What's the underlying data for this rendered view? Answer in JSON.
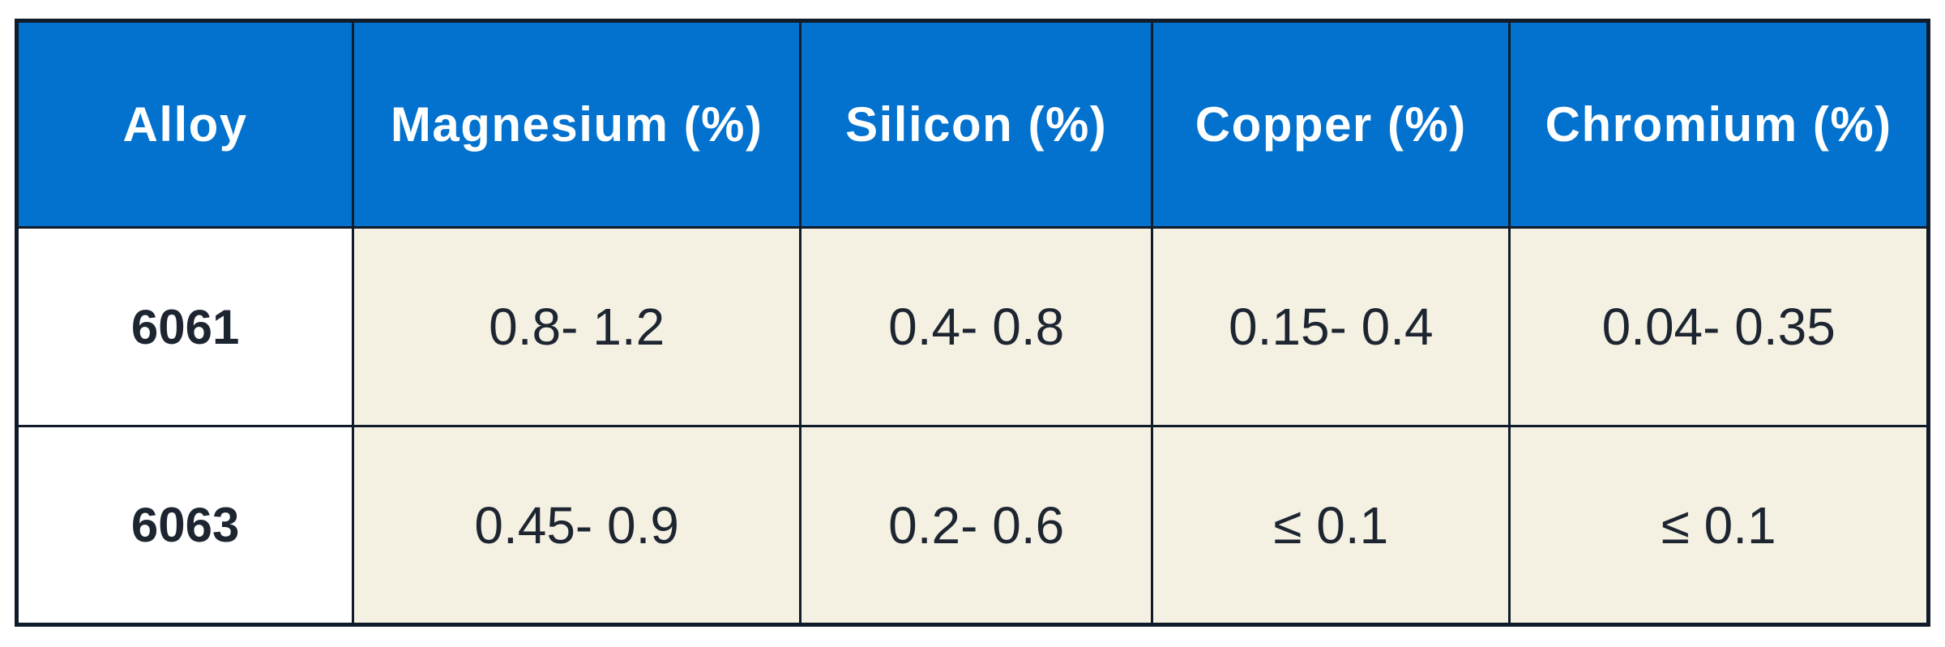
{
  "colors": {
    "page_bg": "#ffffff",
    "header_bg": "#0272ce",
    "header_text": "#ffffff",
    "cell_bg": "#f4f0e2",
    "alloy_col_bg": "#ffffff",
    "border": "#111c2a",
    "data_text": "#1d2531"
  },
  "chart_data": {
    "type": "table",
    "title": "",
    "columns": [
      "Alloy",
      "Magnesium (%)",
      "Silicon (%)",
      "Copper (%)",
      "Chromium (%)"
    ],
    "rows": [
      [
        "6061",
        "0.8- 1.2",
        "0.4- 0.8",
        "0.15- 0.4",
        "0.04- 0.35"
      ],
      [
        "6063",
        "0.45- 0.9",
        "0.2- 0.6",
        "≤ 0.1",
        "≤ 0.1"
      ]
    ]
  }
}
